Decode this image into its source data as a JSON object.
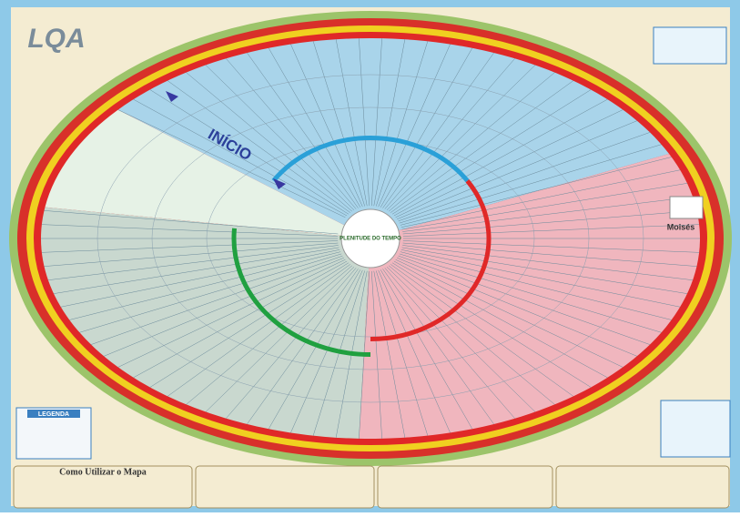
{
  "header": {
    "logo": "LQA"
  },
  "map": {
    "start_label": "INÍCIO",
    "center_label": "PLENITUDE DO TEMPO",
    "person_label": "Moisés"
  },
  "legend": {
    "title": "LEGENDA"
  },
  "footer": {
    "how_to_title": "Como Utilizar o Mapa"
  }
}
